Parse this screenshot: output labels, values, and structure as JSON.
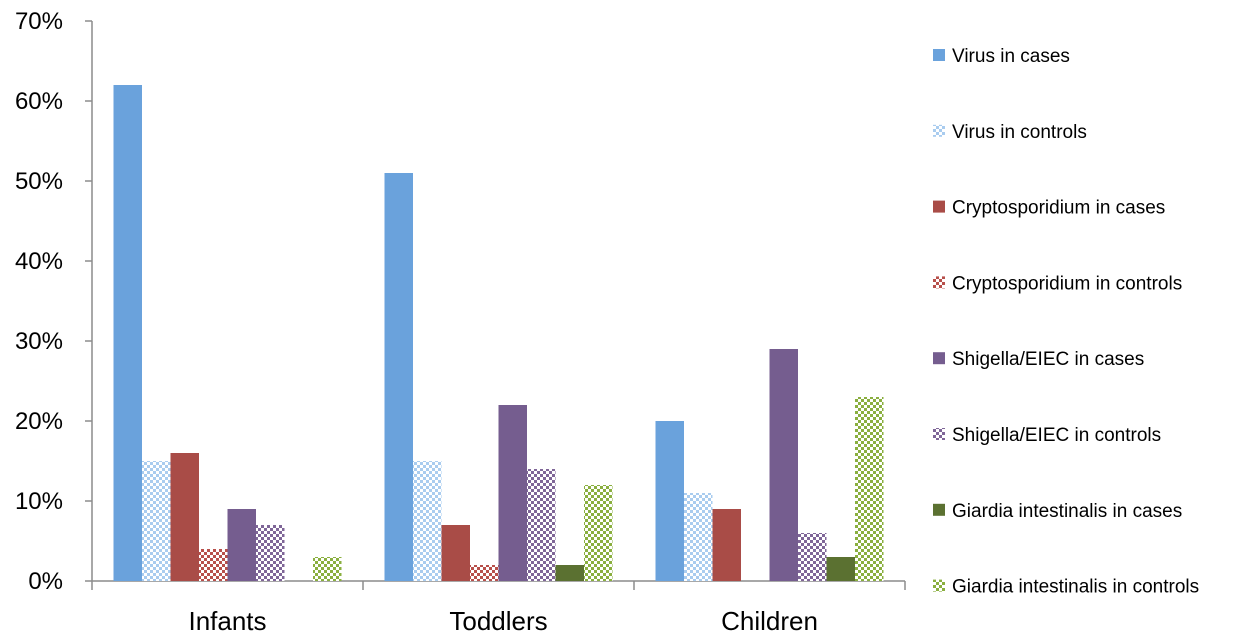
{
  "chart_data": {
    "type": "bar",
    "title": "",
    "xlabel": "",
    "ylabel": "",
    "ylim": [
      0,
      0.7
    ],
    "y_ticks": [
      "0%",
      "10%",
      "20%",
      "30%",
      "40%",
      "50%",
      "60%",
      "70%"
    ],
    "y_tick_values": [
      0,
      0.1,
      0.2,
      0.3,
      0.4,
      0.5,
      0.6,
      0.7
    ],
    "categories": [
      "Infants",
      "Toddlers",
      "Children"
    ],
    "legend_position": "right",
    "grid": false,
    "series": [
      {
        "name": "Virus in cases",
        "values": [
          0.62,
          0.51,
          0.2
        ],
        "color": "#6aa2dc",
        "pattern": "solid"
      },
      {
        "name": "Virus in controls",
        "values": [
          0.15,
          0.15,
          0.11
        ],
        "color": "#a9ccef",
        "pattern": "checker"
      },
      {
        "name": "Cryptosporidium in cases",
        "values": [
          0.16,
          0.07,
          0.09
        ],
        "color": "#a94c47",
        "pattern": "solid"
      },
      {
        "name": "Cryptosporidium in controls",
        "values": [
          0.04,
          0.02,
          0.0
        ],
        "color": "#b8504b",
        "pattern": "checker"
      },
      {
        "name": "Shigella/EIEC in cases",
        "values": [
          0.09,
          0.22,
          0.29
        ],
        "color": "#755d8f",
        "pattern": "solid"
      },
      {
        "name": "Shigella/EIEC in controls",
        "values": [
          0.07,
          0.14,
          0.06
        ],
        "color": "#7f6698",
        "pattern": "checker"
      },
      {
        "name": "Giardia intestinalis in cases",
        "values": [
          0.0,
          0.02,
          0.03
        ],
        "color": "#5b7131",
        "pattern": "solid"
      },
      {
        "name": "Giardia intestinalis in controls",
        "values": [
          0.03,
          0.12,
          0.23
        ],
        "color": "#8aaf3f",
        "pattern": "checker"
      }
    ]
  }
}
